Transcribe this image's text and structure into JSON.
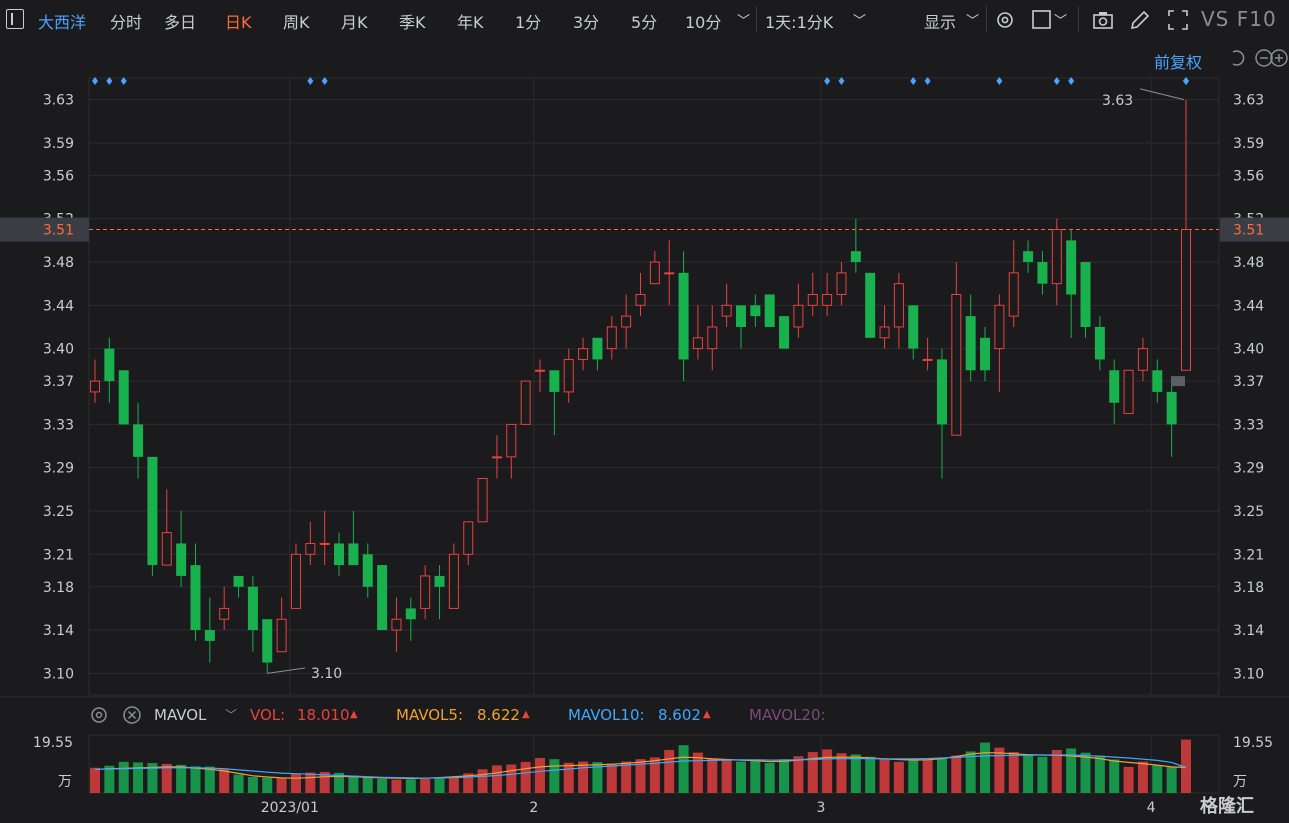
{
  "toolbar": {
    "stock_name": "大西洋",
    "periods": [
      "分时",
      "多日",
      "日K",
      "周K",
      "月K",
      "季K",
      "年K",
      "1分",
      "3分",
      "5分",
      "10分"
    ],
    "active_period": "日K",
    "combo": "1天:1分K",
    "display": "显示",
    "right_text": "VS F10"
  },
  "chart_header": {
    "adjust": "前复权"
  },
  "price_axis": {
    "ticks": [
      "3.63",
      "3.59",
      "3.56",
      "3.52",
      "3.48",
      "3.44",
      "3.40",
      "3.37",
      "3.33",
      "3.29",
      "3.25",
      "3.21",
      "3.18",
      "3.14",
      "3.10"
    ],
    "current": "3.51"
  },
  "annotations": {
    "high": "3.63",
    "low": "3.10"
  },
  "indicator": {
    "name": "MAVOL",
    "vol_label": "VOL:",
    "vol_value": "18.010",
    "mavol5_label": "MAVOL5:",
    "mavol5_value": "8.622",
    "mavol10_label": "MAVOL10:",
    "mavol10_value": "8.602",
    "mavol20_label": "MAVOL20:",
    "vol_axis_top": "19.55",
    "vol_axis_unit": "万"
  },
  "x_axis": {
    "labels": [
      "2023/01",
      "2",
      "3",
      "4"
    ]
  },
  "colors": {
    "up": "#e8423f",
    "down": "#19b04e",
    "bg": "#1b1b1d",
    "grid": "#2c2c30",
    "accent": "#ff6a3c",
    "blue": "#4aa3ff"
  },
  "watermark": "格隆汇",
  "chart_data": {
    "type": "candlestick",
    "ylim": [
      3.08,
      3.65
    ],
    "candles": [
      {
        "o": 3.36,
        "c": 3.37,
        "h": 3.39,
        "l": 3.35
      },
      {
        "o": 3.4,
        "c": 3.37,
        "h": 3.41,
        "l": 3.35
      },
      {
        "o": 3.38,
        "c": 3.33,
        "h": 3.38,
        "l": 3.33
      },
      {
        "o": 3.33,
        "c": 3.3,
        "h": 3.35,
        "l": 3.28
      },
      {
        "o": 3.3,
        "c": 3.2,
        "h": 3.3,
        "l": 3.19
      },
      {
        "o": 3.2,
        "c": 3.23,
        "h": 3.27,
        "l": 3.2
      },
      {
        "o": 3.22,
        "c": 3.19,
        "h": 3.25,
        "l": 3.18
      },
      {
        "o": 3.2,
        "c": 3.14,
        "h": 3.22,
        "l": 3.13
      },
      {
        "o": 3.14,
        "c": 3.13,
        "h": 3.17,
        "l": 3.11
      },
      {
        "o": 3.15,
        "c": 3.16,
        "h": 3.18,
        "l": 3.14
      },
      {
        "o": 3.19,
        "c": 3.18,
        "h": 3.19,
        "l": 3.17
      },
      {
        "o": 3.18,
        "c": 3.14,
        "h": 3.19,
        "l": 3.12
      },
      {
        "o": 3.15,
        "c": 3.11,
        "h": 3.15,
        "l": 3.1
      },
      {
        "o": 3.12,
        "c": 3.15,
        "h": 3.17,
        "l": 3.12
      },
      {
        "o": 3.16,
        "c": 3.21,
        "h": 3.22,
        "l": 3.16
      },
      {
        "o": 3.21,
        "c": 3.22,
        "h": 3.24,
        "l": 3.2
      },
      {
        "o": 3.22,
        "c": 3.22,
        "h": 3.25,
        "l": 3.2
      },
      {
        "o": 3.22,
        "c": 3.2,
        "h": 3.23,
        "l": 3.19
      },
      {
        "o": 3.22,
        "c": 3.2,
        "h": 3.25,
        "l": 3.2
      },
      {
        "o": 3.21,
        "c": 3.18,
        "h": 3.22,
        "l": 3.17
      },
      {
        "o": 3.2,
        "c": 3.14,
        "h": 3.2,
        "l": 3.14
      },
      {
        "o": 3.14,
        "c": 3.15,
        "h": 3.17,
        "l": 3.12
      },
      {
        "o": 3.16,
        "c": 3.15,
        "h": 3.17,
        "l": 3.13
      },
      {
        "o": 3.16,
        "c": 3.19,
        "h": 3.2,
        "l": 3.15
      },
      {
        "o": 3.19,
        "c": 3.18,
        "h": 3.2,
        "l": 3.15
      },
      {
        "o": 3.16,
        "c": 3.21,
        "h": 3.22,
        "l": 3.16
      },
      {
        "o": 3.21,
        "c": 3.24,
        "h": 3.24,
        "l": 3.2
      },
      {
        "o": 3.24,
        "c": 3.28,
        "h": 3.28,
        "l": 3.24
      },
      {
        "o": 3.3,
        "c": 3.3,
        "h": 3.32,
        "l": 3.28
      },
      {
        "o": 3.3,
        "c": 3.33,
        "h": 3.33,
        "l": 3.28
      },
      {
        "o": 3.33,
        "c": 3.37,
        "h": 3.37,
        "l": 3.33
      },
      {
        "o": 3.38,
        "c": 3.38,
        "h": 3.39,
        "l": 3.36
      },
      {
        "o": 3.38,
        "c": 3.36,
        "h": 3.38,
        "l": 3.32
      },
      {
        "o": 3.36,
        "c": 3.39,
        "h": 3.4,
        "l": 3.35
      },
      {
        "o": 3.39,
        "c": 3.4,
        "h": 3.41,
        "l": 3.38
      },
      {
        "o": 3.41,
        "c": 3.39,
        "h": 3.41,
        "l": 3.38
      },
      {
        "o": 3.4,
        "c": 3.42,
        "h": 3.43,
        "l": 3.39
      },
      {
        "o": 3.42,
        "c": 3.43,
        "h": 3.45,
        "l": 3.4
      },
      {
        "o": 3.44,
        "c": 3.45,
        "h": 3.47,
        "l": 3.43
      },
      {
        "o": 3.46,
        "c": 3.48,
        "h": 3.49,
        "l": 3.46
      },
      {
        "o": 3.47,
        "c": 3.47,
        "h": 3.5,
        "l": 3.44
      },
      {
        "o": 3.47,
        "c": 3.39,
        "h": 3.49,
        "l": 3.37
      },
      {
        "o": 3.4,
        "c": 3.41,
        "h": 3.44,
        "l": 3.39
      },
      {
        "o": 3.4,
        "c": 3.42,
        "h": 3.44,
        "l": 3.38
      },
      {
        "o": 3.43,
        "c": 3.44,
        "h": 3.46,
        "l": 3.42
      },
      {
        "o": 3.44,
        "c": 3.42,
        "h": 3.44,
        "l": 3.4
      },
      {
        "o": 3.44,
        "c": 3.43,
        "h": 3.45,
        "l": 3.42
      },
      {
        "o": 3.45,
        "c": 3.42,
        "h": 3.45,
        "l": 3.42
      },
      {
        "o": 3.43,
        "c": 3.4,
        "h": 3.43,
        "l": 3.4
      },
      {
        "o": 3.42,
        "c": 3.44,
        "h": 3.46,
        "l": 3.41
      },
      {
        "o": 3.44,
        "c": 3.45,
        "h": 3.47,
        "l": 3.43
      },
      {
        "o": 3.44,
        "c": 3.45,
        "h": 3.47,
        "l": 3.43
      },
      {
        "o": 3.45,
        "c": 3.47,
        "h": 3.48,
        "l": 3.44
      },
      {
        "o": 3.49,
        "c": 3.48,
        "h": 3.52,
        "l": 3.47
      },
      {
        "o": 3.47,
        "c": 3.41,
        "h": 3.47,
        "l": 3.41
      },
      {
        "o": 3.41,
        "c": 3.42,
        "h": 3.44,
        "l": 3.4
      },
      {
        "o": 3.42,
        "c": 3.46,
        "h": 3.47,
        "l": 3.4
      },
      {
        "o": 3.44,
        "c": 3.4,
        "h": 3.44,
        "l": 3.39
      },
      {
        "o": 3.39,
        "c": 3.39,
        "h": 3.41,
        "l": 3.38
      },
      {
        "o": 3.39,
        "c": 3.33,
        "h": 3.4,
        "l": 3.28
      },
      {
        "o": 3.32,
        "c": 3.45,
        "h": 3.48,
        "l": 3.32
      },
      {
        "o": 3.43,
        "c": 3.38,
        "h": 3.45,
        "l": 3.37
      },
      {
        "o": 3.41,
        "c": 3.38,
        "h": 3.42,
        "l": 3.37
      },
      {
        "o": 3.4,
        "c": 3.44,
        "h": 3.45,
        "l": 3.36
      },
      {
        "o": 3.43,
        "c": 3.47,
        "h": 3.5,
        "l": 3.42
      },
      {
        "o": 3.49,
        "c": 3.48,
        "h": 3.5,
        "l": 3.47
      },
      {
        "o": 3.48,
        "c": 3.46,
        "h": 3.49,
        "l": 3.45
      },
      {
        "o": 3.46,
        "c": 3.51,
        "h": 3.52,
        "l": 3.44
      },
      {
        "o": 3.5,
        "c": 3.45,
        "h": 3.51,
        "l": 3.41
      },
      {
        "o": 3.48,
        "c": 3.42,
        "h": 3.48,
        "l": 3.41
      },
      {
        "o": 3.42,
        "c": 3.39,
        "h": 3.43,
        "l": 3.38
      },
      {
        "o": 3.38,
        "c": 3.35,
        "h": 3.39,
        "l": 3.33
      },
      {
        "o": 3.34,
        "c": 3.38,
        "h": 3.38,
        "l": 3.34
      },
      {
        "o": 3.38,
        "c": 3.4,
        "h": 3.41,
        "l": 3.37
      },
      {
        "o": 3.38,
        "c": 3.36,
        "h": 3.39,
        "l": 3.35
      },
      {
        "o": 3.36,
        "c": 3.33,
        "h": 3.37,
        "l": 3.3
      },
      {
        "o": 3.38,
        "c": 3.51,
        "h": 3.63,
        "l": 3.38
      }
    ],
    "volumes": [
      8.5,
      9.2,
      10.5,
      10.3,
      10.1,
      9.8,
      9.5,
      9.0,
      8.9,
      8.2,
      6.2,
      5.4,
      5.1,
      5.0,
      6.5,
      6.9,
      7.1,
      6.8,
      5.9,
      5.4,
      4.8,
      4.5,
      4.6,
      4.7,
      4.9,
      5.2,
      6.6,
      8.0,
      9.3,
      9.6,
      10.5,
      11.8,
      11.4,
      10.2,
      10.6,
      10.4,
      9.9,
      10.6,
      11.4,
      12.0,
      14.5,
      16.1,
      13.6,
      11.7,
      11.1,
      10.6,
      11.0,
      10.1,
      11.4,
      12.4,
      13.8,
      14.7,
      13.4,
      13.0,
      12.2,
      11.3,
      10.5,
      10.9,
      11.2,
      11.9,
      12.6,
      14.0,
      17.0,
      15.3,
      13.8,
      13.1,
      12.2,
      14.5,
      15.0,
      13.6,
      12.6,
      11.3,
      8.8,
      10.6,
      9.4,
      8.8,
      18.0
    ],
    "mavol5": [
      8.0,
      8.2,
      8.3,
      8.5,
      8.6,
      8.8,
      8.8,
      8.4,
      8.0,
      7.4,
      6.6,
      5.8,
      5.4,
      5.1,
      5.0,
      5.2,
      5.5,
      5.6,
      5.5,
      5.3,
      5.1,
      5.0,
      4.9,
      5.0,
      5.2,
      5.5,
      5.8,
      6.2,
      6.8,
      7.5,
      8.2,
      8.8,
      9.1,
      9.2,
      9.4,
      9.5,
      9.7,
      10.0,
      10.4,
      10.9,
      11.5,
      12.1,
      11.9,
      11.5,
      11.3,
      11.1,
      10.9,
      10.6,
      10.7,
      11.1,
      11.6,
      12.0,
      12.1,
      12.1,
      11.8,
      11.5,
      11.3,
      11.1,
      11.2,
      11.6,
      12.3,
      13.1,
      13.6,
      13.5,
      13.2,
      12.9,
      12.8,
      12.7,
      12.5,
      12.1,
      11.6,
      10.8,
      10.3,
      9.9,
      9.4,
      8.8,
      8.6
    ],
    "mavol10": [
      8.0,
      8.1,
      8.2,
      8.3,
      8.4,
      8.5,
      8.5,
      8.5,
      8.4,
      8.2,
      7.8,
      7.4,
      7.0,
      6.7,
      6.5,
      6.3,
      6.1,
      5.9,
      5.7,
      5.5,
      5.3,
      5.2,
      5.1,
      5.0,
      5.1,
      5.2,
      5.4,
      5.6,
      5.9,
      6.3,
      6.8,
      7.3,
      7.7,
      8.1,
      8.5,
      8.8,
      9.1,
      9.4,
      9.7,
      10.0,
      10.4,
      10.8,
      10.9,
      11.0,
      11.1,
      11.2,
      11.2,
      11.1,
      11.1,
      11.2,
      11.3,
      11.5,
      11.6,
      11.6,
      11.6,
      11.5,
      11.5,
      11.5,
      11.6,
      11.8,
      12.0,
      12.3,
      12.5,
      12.6,
      12.7,
      12.7,
      12.8,
      12.8,
      12.8,
      12.6,
      12.4,
      12.1,
      11.8,
      11.4,
      11.0,
      10.3,
      8.6
    ]
  }
}
